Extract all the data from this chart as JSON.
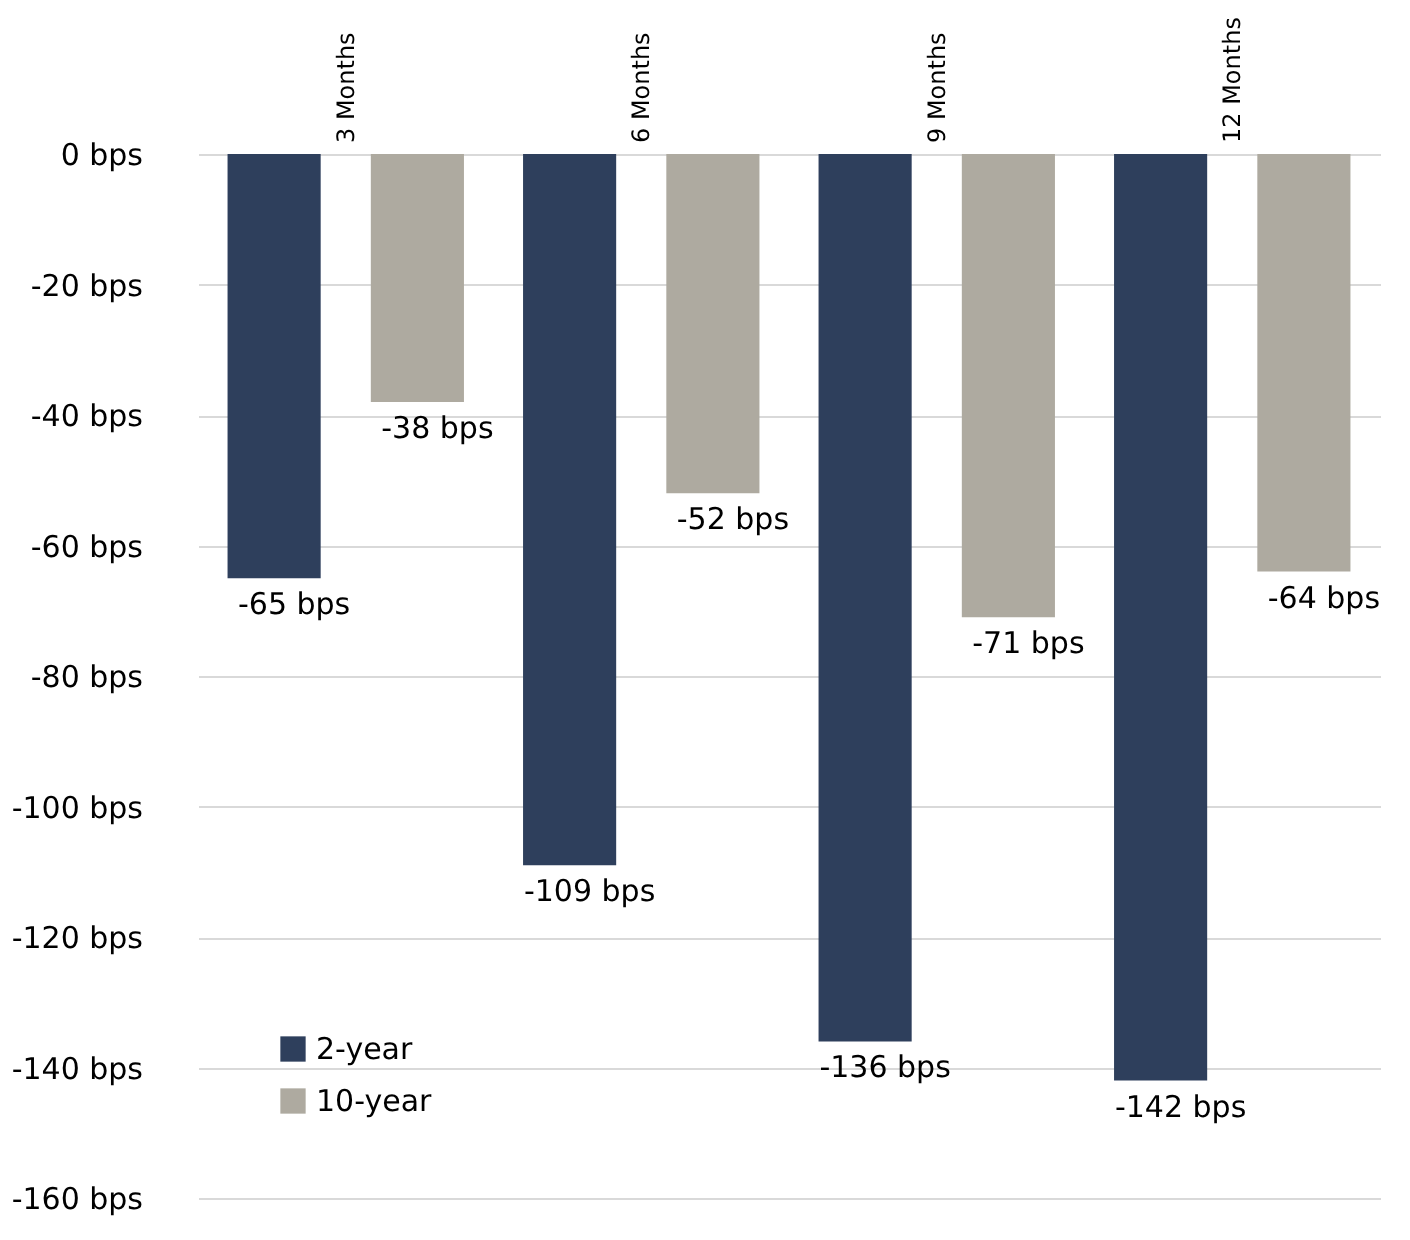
{
  "chart_data": {
    "type": "bar",
    "categories": [
      "3 Months",
      "6 Months",
      "9 Months",
      "12 Months"
    ],
    "series": [
      {
        "name": "2-year",
        "color": "#2e3f5c",
        "values": [
          -65,
          -109,
          -136,
          -142
        ],
        "value_labels": [
          "-65 bps",
          "-109 bps",
          "-136 bps",
          "-142 bps"
        ]
      },
      {
        "name": "10-year",
        "color": "#aeaaa0",
        "values": [
          -38,
          -52,
          -71,
          -64
        ],
        "value_labels": [
          "-38 bps",
          "-52 bps",
          "-71 bps",
          "-64 bps"
        ]
      }
    ],
    "ylim": [
      -160,
      0
    ],
    "yticks": [
      {
        "value": 0,
        "label": "0 bps"
      },
      {
        "value": -20,
        "label": "-20 bps"
      },
      {
        "value": -40,
        "label": "-40 bps"
      },
      {
        "value": -60,
        "label": "-60 bps"
      },
      {
        "value": -80,
        "label": "-80 bps"
      },
      {
        "value": -100,
        "label": "-100 bps"
      },
      {
        "value": -120,
        "label": "-120 bps"
      },
      {
        "value": -140,
        "label": "-140 bps"
      },
      {
        "value": -160,
        "label": "-160 bps"
      }
    ],
    "grid": "y",
    "legend": "bottom left"
  }
}
